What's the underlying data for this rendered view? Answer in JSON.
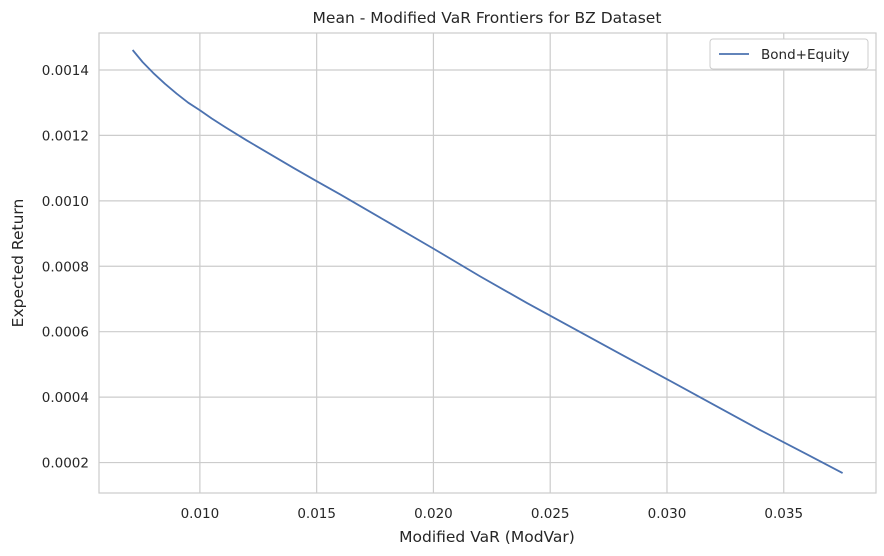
{
  "chart_data": {
    "type": "line",
    "title": "Mean - Modified VaR Frontiers for BZ Dataset",
    "xlabel": "Modified VaR (ModVar)",
    "ylabel": "Expected Return",
    "xlim": [
      0.00568,
      0.03895
    ],
    "ylim": [
      0.000107,
      0.001513
    ],
    "x_ticks": [
      0.01,
      0.015,
      0.02,
      0.025,
      0.03,
      0.035
    ],
    "x_tick_labels": [
      "0.010",
      "0.015",
      "0.020",
      "0.025",
      "0.030",
      "0.035"
    ],
    "y_ticks": [
      0.0002,
      0.0004,
      0.0006,
      0.0008,
      0.001,
      0.0012,
      0.0014
    ],
    "y_tick_labels": [
      "0.0002",
      "0.0004",
      "0.0006",
      "0.0008",
      "0.0010",
      "0.0012",
      "0.0014"
    ],
    "grid": true,
    "legend_position": "top-right",
    "series": [
      {
        "name": "Bond+Equity",
        "color": "#4c72b0",
        "x": [
          0.00712,
          0.00755,
          0.008,
          0.0085,
          0.009,
          0.0095,
          0.01,
          0.0105,
          0.011,
          0.012,
          0.013,
          0.014,
          0.015,
          0.016,
          0.018,
          0.02,
          0.022,
          0.024,
          0.026,
          0.028,
          0.03,
          0.032,
          0.034,
          0.036,
          0.03752
        ],
        "y": [
          0.001461,
          0.001424,
          0.001391,
          0.001358,
          0.001328,
          0.0013,
          0.001277,
          0.001252,
          0.001229,
          0.001185,
          0.001143,
          0.001101,
          0.00106,
          0.00102,
          0.000937,
          0.000854,
          0.000769,
          0.000688,
          0.00061,
          0.000532,
          0.000455,
          0.000377,
          0.000299,
          0.000225,
          0.000168
        ]
      }
    ]
  }
}
